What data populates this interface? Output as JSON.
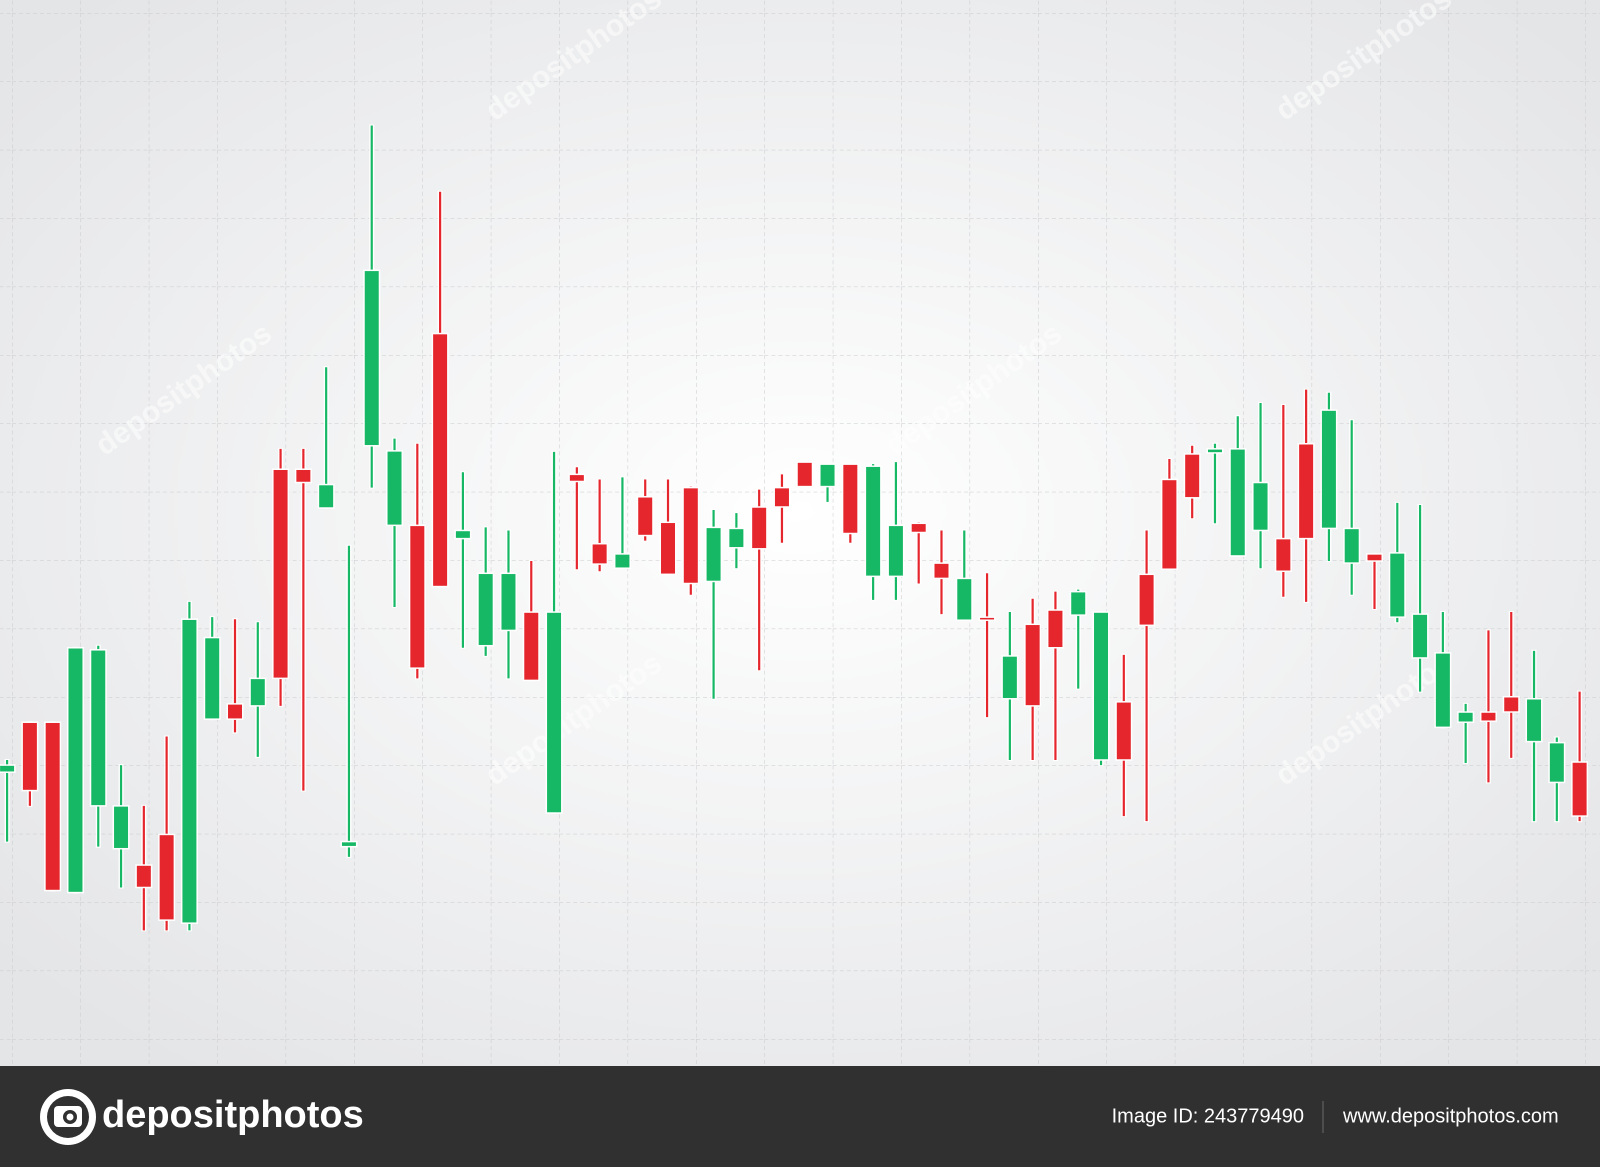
{
  "chart_data": {
    "type": "candlestick",
    "open": [
      288,
      337,
      337,
      170,
      255,
      213,
      197,
      227,
      140,
      340,
      355,
      353,
      585,
      585,
      547,
      215,
      608,
      530,
      530,
      718,
      517,
      412,
      427,
      445,
      248,
      580,
      512,
      488,
      558,
      533,
      567,
      475,
      508,
      548,
      567,
      592,
      568,
      590,
      480,
      480,
      532,
      493,
      437,
      440,
      360,
      433,
      447,
      442,
      300,
      357,
      482,
      575,
      600,
      601,
      500,
      525,
      517,
      610,
      527,
      493,
      502,
      440,
      400,
      332,
      337,
      347,
      362,
      318,
      278,
      298
    ],
    "high": [
      300,
      337,
      337,
      410,
      412,
      295,
      255,
      323,
      455,
      440,
      438,
      435,
      605,
      605,
      685,
      510,
      922,
      615,
      610,
      857,
      582,
      528,
      525,
      495,
      602,
      587,
      575,
      577,
      575,
      575,
      568,
      545,
      542,
      565,
      580,
      592,
      590,
      590,
      590,
      592,
      533,
      525,
      525,
      483,
      445,
      458,
      465,
      467,
      445,
      403,
      525,
      595,
      608,
      610,
      637,
      650,
      648,
      663,
      660,
      633,
      502,
      552,
      550,
      445,
      355,
      427,
      445,
      407,
      322,
      367
    ],
    "low": [
      220,
      255,
      172,
      170,
      215,
      175,
      133,
      133,
      133,
      340,
      327,
      303,
      353,
      270,
      547,
      205,
      567,
      450,
      380,
      470,
      410,
      402,
      380,
      378,
      248,
      487,
      485,
      488,
      515,
      482,
      462,
      360,
      488,
      388,
      513,
      568,
      553,
      513,
      457,
      457,
      473,
      443,
      437,
      342,
      300,
      300,
      300,
      370,
      295,
      245,
      240,
      487,
      537,
      532,
      500,
      488,
      460,
      455,
      495,
      462,
      448,
      435,
      367,
      332,
      297,
      278,
      302,
      240,
      240,
      240
    ],
    "close": [
      295,
      270,
      172,
      410,
      408,
      255,
      175,
      143,
      438,
      420,
      340,
      380,
      380,
      572,
      570,
      220,
      780,
      603,
      390,
      470,
      525,
      483,
      483,
      378,
      445,
      573,
      492,
      502,
      520,
      482,
      473,
      528,
      527,
      507,
      548,
      568,
      590,
      522,
      588,
      530,
      523,
      478,
      478,
      437,
      402,
      353,
      410,
      465,
      445,
      300,
      432,
      487,
      557,
      605,
      605,
      572,
      485,
      517,
      643,
      527,
      495,
      503,
      443,
      405,
      347,
      338,
      347,
      360,
      317,
      245
    ],
    "up_color": "#17b865",
    "down_color": "#e5262d",
    "ylim": [
      0,
      1045
    ]
  },
  "watermark": "depositphotos",
  "footer": {
    "brand": "depositphotos",
    "image_id": "Image ID: 243779490",
    "website": "www.depositphotos.com"
  }
}
